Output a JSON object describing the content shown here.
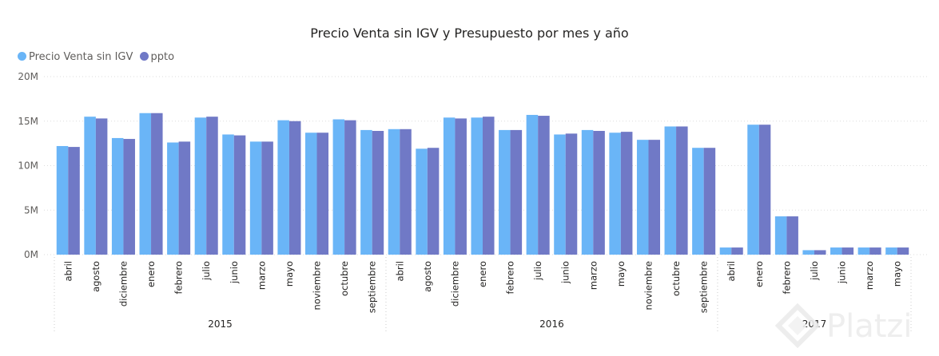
{
  "chart_data": {
    "type": "bar",
    "title": "Precio Venta sin IGV y Presupuesto por mes y año",
    "legend_position": "top-left",
    "grid": true,
    "ylim": [
      0,
      20000000
    ],
    "yticks": [
      "0M",
      "5M",
      "10M",
      "15M",
      "20M"
    ],
    "xlabel": "",
    "ylabel": "",
    "colors": {
      "Precio Venta sin IGV": "#6ab5f7",
      "ppto": "#7079c6"
    },
    "groups": [
      {
        "year": "2015",
        "months": [
          "abril",
          "agosto",
          "diciembre",
          "enero",
          "febrero",
          "julio",
          "junio",
          "marzo",
          "mayo",
          "noviembre",
          "octubre",
          "septiembre"
        ]
      },
      {
        "year": "2016",
        "months": [
          "abril",
          "agosto",
          "diciembre",
          "enero",
          "febrero",
          "julio",
          "junio",
          "marzo",
          "mayo",
          "noviembre",
          "octubre",
          "septiembre"
        ]
      },
      {
        "year": "2017",
        "months": [
          "abril",
          "enero",
          "febrero",
          "julio",
          "junio",
          "marzo",
          "mayo"
        ]
      }
    ],
    "series": [
      {
        "name": "Precio Venta sin IGV",
        "values": [
          12.2,
          15.5,
          13.1,
          15.9,
          12.6,
          15.4,
          13.5,
          12.7,
          15.1,
          13.7,
          15.2,
          14.0,
          14.1,
          11.9,
          15.4,
          15.4,
          14.0,
          15.7,
          13.5,
          14.0,
          13.7,
          12.9,
          14.4,
          12.0,
          0.8,
          14.6,
          4.3,
          0.5,
          0.8,
          0.8,
          0.8
        ]
      },
      {
        "name": "ppto",
        "values": [
          12.1,
          15.3,
          13.0,
          15.9,
          12.7,
          15.5,
          13.4,
          12.7,
          15.0,
          13.7,
          15.1,
          13.9,
          14.1,
          12.0,
          15.3,
          15.5,
          14.0,
          15.6,
          13.6,
          13.9,
          13.8,
          12.9,
          14.4,
          12.0,
          0.8,
          14.6,
          4.3,
          0.5,
          0.8,
          0.8,
          0.8
        ]
      }
    ],
    "value_unit": "M"
  },
  "watermark": {
    "text": "Platzi"
  }
}
